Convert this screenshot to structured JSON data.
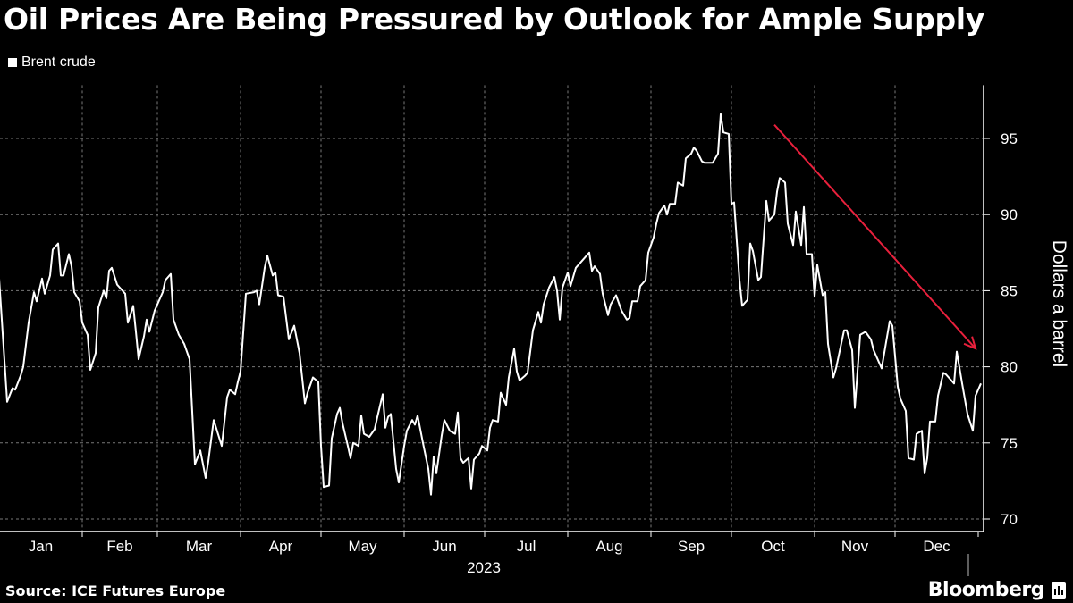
{
  "chart_data": {
    "type": "line",
    "title": "Oil Prices Are Being Pressured by Outlook for Ample Supply",
    "legend": [
      "Brent crude"
    ],
    "legend_placement": "top-left",
    "xlabel": "2023",
    "ylabel": "Dollars a barrel",
    "ylim": [
      70,
      98.5
    ],
    "y_ticks": [
      70,
      75,
      80,
      85,
      90,
      95
    ],
    "x_unit": "day of year 2023",
    "x_tick_labels": [
      "Jan",
      "Feb",
      "Mar",
      "Apr",
      "May",
      "Jun",
      "Jul",
      "Aug",
      "Sep",
      "Oct",
      "Nov",
      "Dec"
    ],
    "month_start_days": [
      1,
      32,
      60,
      91,
      121,
      152,
      182,
      213,
      244,
      274,
      305,
      335
    ],
    "grid": true,
    "line_color": "#ffffff",
    "annotation": {
      "type": "arrow",
      "color": "#e8203c",
      "from": [
        290,
        95.9
      ],
      "to": [
        365,
        81.2
      ],
      "meaning": "downtrend"
    },
    "series": [
      {
        "name": "Brent crude",
        "points": [
          [
            1,
            85.8
          ],
          [
            4,
            77.7
          ],
          [
            6,
            78.6
          ],
          [
            7,
            78.5
          ],
          [
            9,
            79.4
          ],
          [
            10,
            80.0
          ],
          [
            12,
            82.9
          ],
          [
            14,
            84.9
          ],
          [
            15,
            84.3
          ],
          [
            17,
            85.8
          ],
          [
            18,
            84.8
          ],
          [
            20,
            86.0
          ],
          [
            21,
            87.7
          ],
          [
            23,
            88.1
          ],
          [
            24,
            86.0
          ],
          [
            25,
            86.0
          ],
          [
            27,
            87.4
          ],
          [
            28,
            86.6
          ],
          [
            29,
            84.9
          ],
          [
            31,
            84.3
          ],
          [
            32,
            82.9
          ],
          [
            34,
            82.1
          ],
          [
            35,
            79.8
          ],
          [
            37,
            80.9
          ],
          [
            38,
            83.9
          ],
          [
            40,
            85.0
          ],
          [
            41,
            84.5
          ],
          [
            42,
            86.3
          ],
          [
            43,
            86.5
          ],
          [
            45,
            85.4
          ],
          [
            48,
            84.8
          ],
          [
            49,
            82.9
          ],
          [
            51,
            84.0
          ],
          [
            52,
            82.3
          ],
          [
            53,
            80.5
          ],
          [
            55,
            82.0
          ],
          [
            56,
            83.1
          ],
          [
            57,
            82.3
          ],
          [
            59,
            83.7
          ],
          [
            62,
            84.9
          ],
          [
            63,
            85.7
          ],
          [
            65,
            86.1
          ],
          [
            66,
            83.1
          ],
          [
            68,
            82.1
          ],
          [
            70,
            81.5
          ],
          [
            72,
            80.5
          ],
          [
            74,
            73.6
          ],
          [
            76,
            74.5
          ],
          [
            78,
            72.7
          ],
          [
            79,
            73.8
          ],
          [
            81,
            76.5
          ],
          [
            84,
            74.8
          ],
          [
            86,
            78.0
          ],
          [
            87,
            78.5
          ],
          [
            89,
            78.2
          ],
          [
            90,
            79.0
          ],
          [
            91,
            79.7
          ],
          [
            93,
            84.8
          ],
          [
            96,
            84.9
          ],
          [
            97,
            85.0
          ],
          [
            98,
            84.1
          ],
          [
            100,
            86.5
          ],
          [
            101,
            87.3
          ],
          [
            103,
            86.0
          ],
          [
            104,
            86.2
          ],
          [
            105,
            84.7
          ],
          [
            107,
            84.6
          ],
          [
            109,
            81.8
          ],
          [
            111,
            82.7
          ],
          [
            113,
            80.9
          ],
          [
            115,
            77.6
          ],
          [
            116,
            78.3
          ],
          [
            118,
            79.3
          ],
          [
            120,
            79.0
          ],
          [
            121,
            74.8
          ],
          [
            122,
            72.1
          ],
          [
            124,
            72.2
          ],
          [
            125,
            75.3
          ],
          [
            127,
            76.9
          ],
          [
            128,
            77.3
          ],
          [
            129,
            76.3
          ],
          [
            131,
            74.8
          ],
          [
            132,
            74.0
          ],
          [
            133,
            75.0
          ],
          [
            135,
            74.8
          ],
          [
            136,
            76.8
          ],
          [
            137,
            75.6
          ],
          [
            139,
            75.4
          ],
          [
            141,
            75.9
          ],
          [
            142,
            76.7
          ],
          [
            144,
            78.2
          ],
          [
            145,
            76.0
          ],
          [
            146,
            76.7
          ],
          [
            147,
            76.9
          ],
          [
            149,
            73.3
          ],
          [
            150,
            72.4
          ],
          [
            152,
            74.8
          ],
          [
            153,
            75.8
          ],
          [
            155,
            76.5
          ],
          [
            156,
            76.2
          ],
          [
            157,
            76.8
          ],
          [
            159,
            75.0
          ],
          [
            161,
            73.3
          ],
          [
            162,
            71.6
          ],
          [
            163,
            74.1
          ],
          [
            164,
            73.0
          ],
          [
            166,
            75.5
          ],
          [
            167,
            76.5
          ],
          [
            169,
            75.8
          ],
          [
            171,
            75.6
          ],
          [
            172,
            77.0
          ],
          [
            173,
            74.0
          ],
          [
            174,
            73.7
          ],
          [
            176,
            74.0
          ],
          [
            177,
            72.0
          ],
          [
            178,
            73.9
          ],
          [
            180,
            74.3
          ],
          [
            181,
            74.8
          ],
          [
            183,
            74.5
          ],
          [
            184,
            76.0
          ],
          [
            185,
            76.5
          ],
          [
            187,
            76.4
          ],
          [
            188,
            78.3
          ],
          [
            190,
            77.5
          ],
          [
            191,
            79.3
          ],
          [
            193,
            81.2
          ],
          [
            194,
            79.7
          ],
          [
            195,
            79.1
          ],
          [
            197,
            79.4
          ],
          [
            198,
            79.6
          ],
          [
            200,
            82.4
          ],
          [
            202,
            83.6
          ],
          [
            203,
            82.9
          ],
          [
            204,
            84.1
          ],
          [
            206,
            85.2
          ],
          [
            208,
            85.9
          ],
          [
            209,
            85.0
          ],
          [
            210,
            83.1
          ],
          [
            211,
            85.2
          ],
          [
            213,
            86.2
          ],
          [
            214,
            85.3
          ],
          [
            216,
            86.5
          ],
          [
            221,
            87.5
          ],
          [
            222,
            86.3
          ],
          [
            223,
            86.6
          ],
          [
            225,
            86.1
          ],
          [
            226,
            84.8
          ],
          [
            228,
            83.4
          ],
          [
            229,
            84.1
          ],
          [
            231,
            84.7
          ],
          [
            233,
            83.7
          ],
          [
            235,
            83.1
          ],
          [
            236,
            83.2
          ],
          [
            237,
            84.3
          ],
          [
            239,
            84.3
          ],
          [
            240,
            85.3
          ],
          [
            242,
            85.7
          ],
          [
            243,
            87.5
          ],
          [
            245,
            88.5
          ],
          [
            246,
            89.4
          ],
          [
            247,
            90.1
          ],
          [
            249,
            90.6
          ],
          [
            250,
            90.0
          ],
          [
            251,
            90.7
          ],
          [
            253,
            90.7
          ],
          [
            254,
            92.1
          ],
          [
            256,
            91.9
          ],
          [
            257,
            93.7
          ],
          [
            259,
            94.0
          ],
          [
            260,
            94.4
          ],
          [
            261,
            94.2
          ],
          [
            263,
            93.5
          ],
          [
            264,
            93.4
          ],
          [
            267,
            93.4
          ],
          [
            269,
            94.0
          ],
          [
            270,
            96.6
          ],
          [
            271,
            95.4
          ],
          [
            273,
            95.3
          ],
          [
            274,
            90.7
          ],
          [
            275,
            90.8
          ],
          [
            277,
            85.7
          ],
          [
            278,
            84.0
          ],
          [
            280,
            84.4
          ],
          [
            281,
            88.1
          ],
          [
            282,
            87.6
          ],
          [
            284,
            85.7
          ],
          [
            285,
            85.9
          ],
          [
            287,
            90.9
          ],
          [
            288,
            89.6
          ],
          [
            290,
            90.0
          ],
          [
            291,
            91.5
          ],
          [
            292,
            92.4
          ],
          [
            294,
            92.1
          ],
          [
            295,
            89.4
          ],
          [
            297,
            88.0
          ],
          [
            298,
            90.2
          ],
          [
            300,
            88.0
          ],
          [
            301,
            90.5
          ],
          [
            302,
            87.4
          ],
          [
            304,
            87.4
          ],
          [
            305,
            84.6
          ],
          [
            306,
            86.7
          ],
          [
            308,
            84.7
          ],
          [
            309,
            84.9
          ],
          [
            310,
            81.5
          ],
          [
            312,
            79.3
          ],
          [
            313,
            79.9
          ],
          [
            316,
            82.4
          ],
          [
            317,
            82.4
          ],
          [
            319,
            81.1
          ],
          [
            320,
            77.3
          ],
          [
            322,
            82.1
          ],
          [
            324,
            82.3
          ],
          [
            326,
            81.8
          ],
          [
            327,
            81.1
          ],
          [
            330,
            79.9
          ],
          [
            333,
            83.0
          ],
          [
            334,
            82.7
          ],
          [
            336,
            78.7
          ],
          [
            337,
            77.9
          ],
          [
            339,
            77.1
          ],
          [
            340,
            74.0
          ],
          [
            342,
            73.9
          ],
          [
            343,
            75.6
          ],
          [
            345,
            75.8
          ],
          [
            346,
            73.0
          ],
          [
            347,
            74.0
          ],
          [
            348,
            76.4
          ],
          [
            350,
            76.4
          ],
          [
            351,
            78.1
          ],
          [
            353,
            79.6
          ],
          [
            354,
            79.5
          ],
          [
            357,
            78.9
          ],
          [
            358,
            81.0
          ],
          [
            360,
            78.9
          ],
          [
            362,
            76.9
          ],
          [
            364,
            75.8
          ],
          [
            365,
            78.1
          ],
          [
            367,
            78.9
          ]
        ]
      }
    ]
  },
  "footer": {
    "source": "Source: ICE Futures Europe",
    "brand": "Bloomberg"
  }
}
